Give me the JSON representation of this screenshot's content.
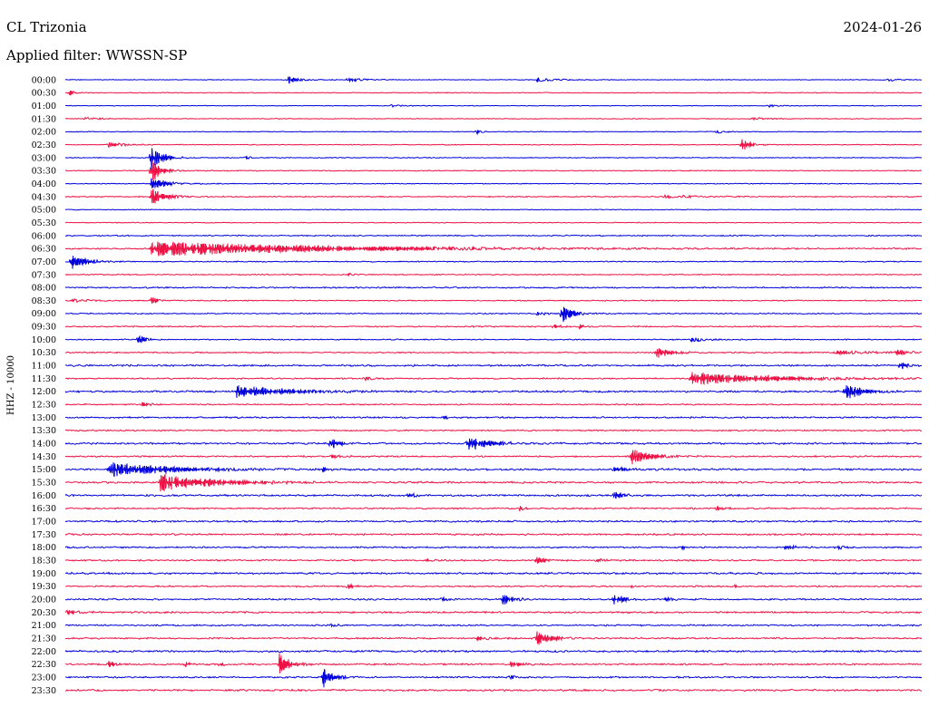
{
  "header": {
    "station": "CL Trizonia",
    "date": "2024-01-26",
    "filter_label": "Applied filter: WWSSN-SP"
  },
  "chart_data": {
    "type": "line",
    "title": "CL Trizonia",
    "subtitle": "Applied filter: WWSSN-SP",
    "ylabel": "HHZ - 10000",
    "row_labels": [
      "00:00",
      "00:30",
      "01:00",
      "01:30",
      "02:00",
      "02:30",
      "03:00",
      "03:30",
      "04:00",
      "04:30",
      "05:00",
      "05:30",
      "06:00",
      "06:30",
      "07:00",
      "07:30",
      "08:00",
      "08:30",
      "09:00",
      "09:30",
      "10:00",
      "10:30",
      "11:00",
      "11:30",
      "12:00",
      "12:30",
      "13:00",
      "13:30",
      "14:00",
      "14:30",
      "15:00",
      "15:30",
      "16:00",
      "16:30",
      "17:00",
      "17:30",
      "18:00",
      "18:30",
      "19:00",
      "19:30",
      "20:00",
      "20:30",
      "21:00",
      "21:30",
      "22:00",
      "22:30",
      "23:00",
      "23:30"
    ],
    "colors": {
      "even_rows": "#0000dd",
      "odd_rows": "#ee1144"
    },
    "noise": [
      0.45,
      0.5,
      0.45,
      0.5,
      0.5,
      0.55,
      0.55,
      0.6,
      0.55,
      0.7,
      0.5,
      0.55,
      0.8,
      0.9,
      0.7,
      0.7,
      0.9,
      0.7,
      0.75,
      0.85,
      0.7,
      0.8,
      1.1,
      0.9,
      1.2,
      0.8,
      1.0,
      0.9,
      1.2,
      1.0,
      1.2,
      1.2,
      1.2,
      1.0,
      1.1,
      1.1,
      1.0,
      1.0,
      1.2,
      1.0,
      1.0,
      1.1,
      1.0,
      1.0,
      1.2,
      1.1,
      1.0,
      1.2
    ],
    "events": [
      {
        "row": 0,
        "x": 0.26,
        "amp": 5,
        "dur": 0.012
      },
      {
        "row": 0,
        "x": 0.33,
        "amp": 3,
        "dur": 0.015
      },
      {
        "row": 0,
        "x": 0.55,
        "amp": 2,
        "dur": 0.02
      },
      {
        "row": 0,
        "x": 0.96,
        "amp": 2,
        "dur": 0.01
      },
      {
        "row": 1,
        "x": 0.005,
        "amp": 3,
        "dur": 0.006
      },
      {
        "row": 2,
        "x": 0.38,
        "amp": 1.5,
        "dur": 0.01
      },
      {
        "row": 2,
        "x": 0.82,
        "amp": 1.5,
        "dur": 0.01
      },
      {
        "row": 3,
        "x": 0.02,
        "amp": 1.5,
        "dur": 0.02
      },
      {
        "row": 3,
        "x": 0.8,
        "amp": 1.5,
        "dur": 0.015
      },
      {
        "row": 4,
        "x": 0.48,
        "amp": 3,
        "dur": 0.005
      },
      {
        "row": 4,
        "x": 0.76,
        "amp": 2,
        "dur": 0.012
      },
      {
        "row": 5,
        "x": 0.05,
        "amp": 3,
        "dur": 0.015
      },
      {
        "row": 5,
        "x": 0.79,
        "amp": 9,
        "dur": 0.008
      },
      {
        "row": 6,
        "x": 0.1,
        "amp": 16,
        "dur": 0.012
      },
      {
        "row": 6,
        "x": 0.21,
        "amp": 3,
        "dur": 0.004
      },
      {
        "row": 7,
        "x": 0.1,
        "amp": 14,
        "dur": 0.012
      },
      {
        "row": 8,
        "x": 0.1,
        "amp": 8,
        "dur": 0.015
      },
      {
        "row": 9,
        "x": 0.1,
        "amp": 10,
        "dur": 0.015
      },
      {
        "row": 9,
        "x": 0.7,
        "amp": 1.5,
        "dur": 0.04
      },
      {
        "row": 13,
        "x": 0.1,
        "amp": 9,
        "dur": 0.18
      },
      {
        "row": 14,
        "x": 0.007,
        "amp": 10,
        "dur": 0.015
      },
      {
        "row": 15,
        "x": 0.33,
        "amp": 2,
        "dur": 0.006
      },
      {
        "row": 17,
        "x": 0.005,
        "amp": 2,
        "dur": 0.02
      },
      {
        "row": 17,
        "x": 0.1,
        "amp": 5,
        "dur": 0.006
      },
      {
        "row": 18,
        "x": 0.58,
        "amp": 12,
        "dur": 0.01
      },
      {
        "row": 18,
        "x": 0.55,
        "amp": 2,
        "dur": 0.01
      },
      {
        "row": 19,
        "x": 0.57,
        "amp": 3,
        "dur": 0.008
      },
      {
        "row": 19,
        "x": 0.6,
        "amp": 3,
        "dur": 0.006
      },
      {
        "row": 20,
        "x": 0.085,
        "amp": 7,
        "dur": 0.006
      },
      {
        "row": 20,
        "x": 0.73,
        "amp": 2,
        "dur": 0.02
      },
      {
        "row": 21,
        "x": 0.69,
        "amp": 7,
        "dur": 0.015
      },
      {
        "row": 21,
        "x": 0.9,
        "amp": 2,
        "dur": 0.04
      },
      {
        "row": 21,
        "x": 0.97,
        "amp": 3,
        "dur": 0.01
      },
      {
        "row": 22,
        "x": 0.975,
        "amp": 6,
        "dur": 0.006
      },
      {
        "row": 23,
        "x": 0.73,
        "amp": 7,
        "dur": 0.09
      },
      {
        "row": 23,
        "x": 0.35,
        "amp": 2,
        "dur": 0.01
      },
      {
        "row": 24,
        "x": 0.2,
        "amp": 7,
        "dur": 0.05
      },
      {
        "row": 24,
        "x": 0.91,
        "amp": 10,
        "dur": 0.018
      },
      {
        "row": 25,
        "x": 0.09,
        "amp": 3,
        "dur": 0.008
      },
      {
        "row": 26,
        "x": 0.44,
        "amp": 2,
        "dur": 0.008
      },
      {
        "row": 28,
        "x": 0.31,
        "amp": 7,
        "dur": 0.008
      },
      {
        "row": 28,
        "x": 0.47,
        "amp": 9,
        "dur": 0.02
      },
      {
        "row": 29,
        "x": 0.31,
        "amp": 2,
        "dur": 0.01
      },
      {
        "row": 29,
        "x": 0.66,
        "amp": 9,
        "dur": 0.02
      },
      {
        "row": 30,
        "x": 0.05,
        "amp": 9,
        "dur": 0.06
      },
      {
        "row": 30,
        "x": 0.3,
        "amp": 3,
        "dur": 0.006
      },
      {
        "row": 30,
        "x": 0.64,
        "amp": 2,
        "dur": 0.02
      },
      {
        "row": 31,
        "x": 0.11,
        "amp": 11,
        "dur": 0.05
      },
      {
        "row": 32,
        "x": 0.4,
        "amp": 3,
        "dur": 0.006
      },
      {
        "row": 32,
        "x": 0.64,
        "amp": 3,
        "dur": 0.015
      },
      {
        "row": 33,
        "x": 0.53,
        "amp": 3,
        "dur": 0.006
      },
      {
        "row": 33,
        "x": 0.76,
        "amp": 2,
        "dur": 0.01
      },
      {
        "row": 36,
        "x": 0.84,
        "amp": 3,
        "dur": 0.01
      },
      {
        "row": 36,
        "x": 0.9,
        "amp": 3,
        "dur": 0.006
      },
      {
        "row": 36,
        "x": 0.72,
        "amp": 2,
        "dur": 0.004
      },
      {
        "row": 37,
        "x": 0.55,
        "amp": 6,
        "dur": 0.006
      },
      {
        "row": 37,
        "x": 0.42,
        "amp": 2,
        "dur": 0.01
      },
      {
        "row": 37,
        "x": 0.62,
        "amp": 2,
        "dur": 0.01
      },
      {
        "row": 39,
        "x": 0.33,
        "amp": 3,
        "dur": 0.006
      },
      {
        "row": 39,
        "x": 0.66,
        "amp": 2,
        "dur": 0.006
      },
      {
        "row": 39,
        "x": 0.78,
        "amp": 2,
        "dur": 0.006
      },
      {
        "row": 40,
        "x": 0.51,
        "amp": 7,
        "dur": 0.01
      },
      {
        "row": 40,
        "x": 0.64,
        "amp": 7,
        "dur": 0.01
      },
      {
        "row": 40,
        "x": 0.44,
        "amp": 2,
        "dur": 0.006
      },
      {
        "row": 40,
        "x": 0.7,
        "amp": 2,
        "dur": 0.01
      },
      {
        "row": 41,
        "x": 0.002,
        "amp": 3,
        "dur": 0.01
      },
      {
        "row": 42,
        "x": 0.31,
        "amp": 2,
        "dur": 0.006
      },
      {
        "row": 43,
        "x": 0.48,
        "amp": 2,
        "dur": 0.02
      },
      {
        "row": 43,
        "x": 0.55,
        "amp": 8,
        "dur": 0.015
      },
      {
        "row": 45,
        "x": 0.05,
        "amp": 5,
        "dur": 0.006
      },
      {
        "row": 45,
        "x": 0.14,
        "amp": 3,
        "dur": 0.004
      },
      {
        "row": 45,
        "x": 0.18,
        "amp": 3,
        "dur": 0.004
      },
      {
        "row": 45,
        "x": 0.25,
        "amp": 13,
        "dur": 0.01
      },
      {
        "row": 45,
        "x": 0.52,
        "amp": 3,
        "dur": 0.012
      },
      {
        "row": 46,
        "x": 0.3,
        "amp": 14,
        "dur": 0.01
      },
      {
        "row": 46,
        "x": 0.52,
        "amp": 2,
        "dur": 0.006
      }
    ]
  }
}
